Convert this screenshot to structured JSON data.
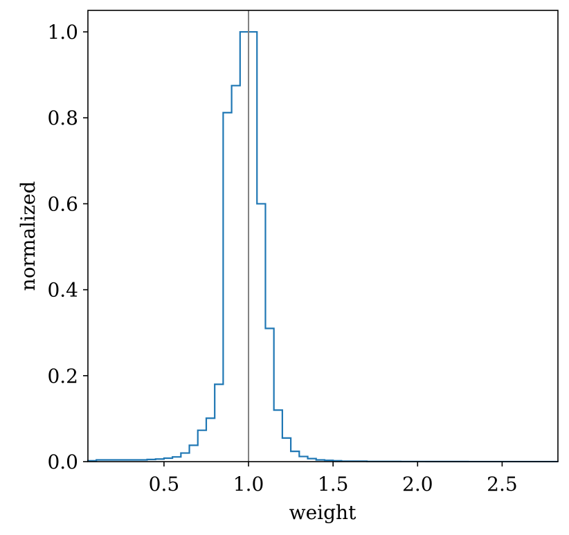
{
  "chart_data": {
    "type": "histogram",
    "xlabel": "weight",
    "ylabel": "normalized",
    "xlim": [
      0.05,
      2.83
    ],
    "ylim": [
      0.0,
      1.05
    ],
    "x_ticks": [
      0.5,
      1.0,
      1.5,
      2.0,
      2.5
    ],
    "x_tick_labels": [
      "0.5",
      "1.0",
      "1.5",
      "2.0",
      "2.5"
    ],
    "y_ticks": [
      0.0,
      0.2,
      0.4,
      0.6,
      0.8,
      1.0
    ],
    "y_tick_labels": [
      "0.0",
      "0.2",
      "0.4",
      "0.6",
      "0.8",
      "1.0"
    ],
    "reference_line_x": 1.0,
    "grid": false,
    "colors": {
      "step": "#1f77b4",
      "reference": "#808080"
    },
    "bin_edges": [
      0.05,
      0.1,
      0.15,
      0.2,
      0.25,
      0.3,
      0.35,
      0.4,
      0.45,
      0.5,
      0.55,
      0.6,
      0.65,
      0.7,
      0.75,
      0.8,
      0.85,
      0.9,
      0.95,
      1.0,
      1.05,
      1.1,
      1.15,
      1.2,
      1.25,
      1.3,
      1.35,
      1.4,
      1.45,
      1.5,
      1.55,
      1.6,
      1.65,
      1.7,
      1.75,
      1.8,
      1.85,
      1.9,
      1.95,
      2.0,
      2.05,
      2.1,
      2.15,
      2.2,
      2.25,
      2.3,
      2.35,
      2.4,
      2.45,
      2.5,
      2.55,
      2.6,
      2.65,
      2.7,
      2.75,
      2.8,
      2.83
    ],
    "values": [
      0.002,
      0.004,
      0.004,
      0.004,
      0.004,
      0.004,
      0.004,
      0.005,
      0.006,
      0.008,
      0.011,
      0.02,
      0.038,
      0.073,
      0.101,
      0.18,
      0.812,
      0.875,
      1.0,
      1.0,
      0.6,
      0.31,
      0.12,
      0.055,
      0.024,
      0.012,
      0.007,
      0.004,
      0.003,
      0.002,
      0.001,
      0.001,
      0.001,
      0.0005,
      0.0005,
      0.0005,
      0.0005,
      0.0003,
      0.0003,
      0.0003,
      0.0002,
      0.0002,
      0.0002,
      0.0002,
      0.0002,
      0.0001,
      0.0001,
      0.0001,
      0.0001,
      0.0001,
      0.0001,
      0.0001,
      0.0001,
      0.0001,
      0.0001,
      0.0001
    ]
  }
}
